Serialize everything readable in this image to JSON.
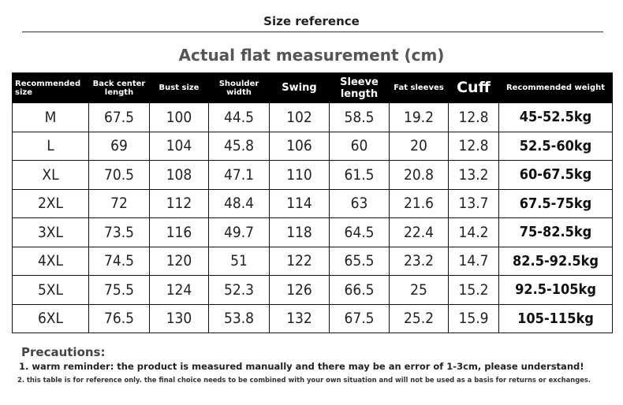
{
  "header": {
    "title": "Size reference",
    "subtitle": "Actual flat measurement (cm)"
  },
  "table": {
    "columns": [
      "Recommended size",
      "Back center length",
      "Bust size",
      "Shoulder width",
      "Swing",
      "Sleeve length",
      "Fat sleeves",
      "Cuff",
      "Recommended weight"
    ],
    "rows": [
      [
        "M",
        "67.5",
        "100",
        "44.5",
        "102",
        "58.5",
        "19.2",
        "12.8",
        "45-52.5kg"
      ],
      [
        "L",
        "69",
        "104",
        "45.8",
        "106",
        "60",
        "20",
        "12.8",
        "52.5-60kg"
      ],
      [
        "XL",
        "70.5",
        "108",
        "47.1",
        "110",
        "61.5",
        "20.8",
        "13.2",
        "60-67.5kg"
      ],
      [
        "2XL",
        "72",
        "112",
        "48.4",
        "114",
        "63",
        "21.6",
        "13.7",
        "67.5-75kg"
      ],
      [
        "3XL",
        "73.5",
        "116",
        "49.7",
        "118",
        "64.5",
        "22.4",
        "14.2",
        "75-82.5kg"
      ],
      [
        "4XL",
        "74.5",
        "120",
        "51",
        "122",
        "65.5",
        "23.2",
        "14.7",
        "82.5-92.5kg"
      ],
      [
        "5XL",
        "75.5",
        "124",
        "52.3",
        "126",
        "66.5",
        "25",
        "15.2",
        "92.5-105kg"
      ],
      [
        "6XL",
        "76.5",
        "130",
        "53.8",
        "132",
        "67.5",
        "25.2",
        "15.9",
        "105-115kg"
      ]
    ]
  },
  "notes": {
    "title": "Precautions:",
    "items": [
      "1. warm reminder: the product is measured manually and there may be an error of 1-3cm, please understand!",
      "2. this table is for reference only. the final choice needs to be combined with your own situation and will not be used as a basis for returns or exchanges."
    ]
  }
}
